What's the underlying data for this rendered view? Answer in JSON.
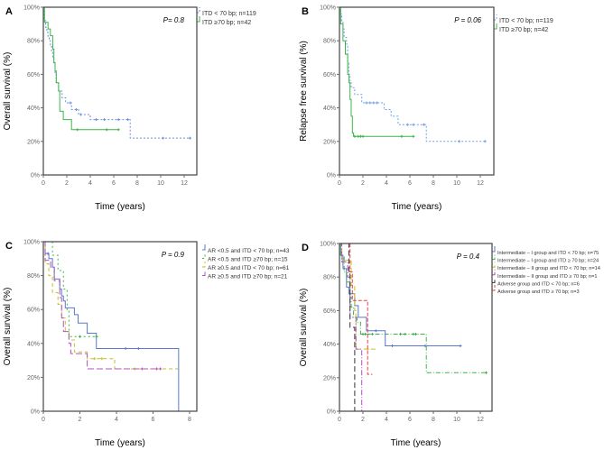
{
  "chart_data": [
    {
      "panel": "A",
      "type": "line",
      "ylabel": "Overall survival (%)",
      "xlabel": "Time (years)",
      "p_value": "P= 0.8",
      "xlim": [
        0,
        12
      ],
      "xticks": [
        0,
        2,
        4,
        6,
        8,
        10,
        12
      ],
      "ylim": [
        0,
        1
      ],
      "yticks": [
        "0%",
        "20%",
        "40%",
        "60%",
        "80%",
        "100%"
      ],
      "series": [
        {
          "name": "ITD < 70 bp; n=119",
          "color": "#6f8fd8",
          "dash": "2,2",
          "steps": [
            [
              0.05,
              0.92
            ],
            [
              0.2,
              0.88
            ],
            [
              0.3,
              0.85
            ],
            [
              0.4,
              0.82
            ],
            [
              0.5,
              0.8
            ],
            [
              0.6,
              0.77
            ],
            [
              0.7,
              0.73
            ],
            [
              0.8,
              0.7
            ],
            [
              0.9,
              0.66
            ],
            [
              1.0,
              0.6
            ],
            [
              1.1,
              0.55
            ],
            [
              1.3,
              0.5
            ],
            [
              1.6,
              0.46
            ],
            [
              1.9,
              0.43
            ],
            [
              2.4,
              0.39
            ],
            [
              3.0,
              0.36
            ],
            [
              4.0,
              0.33
            ],
            [
              7.4,
              0.22
            ]
          ],
          "end": 12.5,
          "censor": [
            2.3,
            2.8,
            3.2,
            4.5,
            5.2,
            6.4,
            7.2,
            10.2,
            12.5
          ]
        },
        {
          "name": "ITD ≥70 bp; n=42",
          "color": "#3cb44b",
          "dash": "",
          "steps": [
            [
              0.1,
              0.91
            ],
            [
              0.4,
              0.87
            ],
            [
              0.6,
              0.83
            ],
            [
              0.8,
              0.75
            ],
            [
              0.9,
              0.67
            ],
            [
              1.0,
              0.62
            ],
            [
              1.1,
              0.55
            ],
            [
              1.3,
              0.5
            ],
            [
              1.4,
              0.38
            ],
            [
              1.7,
              0.33
            ],
            [
              2.4,
              0.27
            ]
          ],
          "end": 6.4,
          "censor": [
            2.9,
            5.4,
            6.4
          ]
        }
      ]
    },
    {
      "panel": "B",
      "type": "line",
      "ylabel": "Relapse free survival (%)",
      "xlabel": "Time (years)",
      "p_value": "P = 0.06",
      "xlim": [
        0,
        12
      ],
      "xticks": [
        0,
        2,
        4,
        6,
        8,
        10,
        12
      ],
      "ylim": [
        0,
        1
      ],
      "yticks": [
        "0%",
        "20%",
        "40%",
        "60%",
        "80%",
        "100%"
      ],
      "series": [
        {
          "name": "ITD < 70 bp; n=119",
          "color": "#6f9fe0",
          "dash": "2,2",
          "steps": [
            [
              0.1,
              0.96
            ],
            [
              0.2,
              0.92
            ],
            [
              0.3,
              0.87
            ],
            [
              0.4,
              0.82
            ],
            [
              0.6,
              0.78
            ],
            [
              0.7,
              0.67
            ],
            [
              0.8,
              0.6
            ],
            [
              0.9,
              0.55
            ],
            [
              1.0,
              0.52
            ],
            [
              1.3,
              0.48
            ],
            [
              1.9,
              0.43
            ],
            [
              3.8,
              0.39
            ],
            [
              4.4,
              0.35
            ],
            [
              5.0,
              0.3
            ],
            [
              7.4,
              0.2
            ]
          ],
          "end": 12.4,
          "censor": [
            2.3,
            2.6,
            2.9,
            3.2,
            5.8,
            6.3,
            7.2,
            10.2,
            12.4
          ]
        },
        {
          "name": "ITD ≥70 bp; n=42",
          "color": "#3cb44b",
          "dash": "",
          "steps": [
            [
              0.1,
              0.9
            ],
            [
              0.3,
              0.8
            ],
            [
              0.5,
              0.72
            ],
            [
              0.7,
              0.6
            ],
            [
              0.8,
              0.55
            ],
            [
              0.9,
              0.45
            ],
            [
              1.0,
              0.35
            ],
            [
              1.1,
              0.25
            ],
            [
              1.2,
              0.23
            ]
          ],
          "end": 6.3,
          "censor": [
            1.3,
            1.6,
            1.8,
            2.0,
            5.3,
            6.3
          ]
        }
      ]
    },
    {
      "panel": "C",
      "type": "line",
      "ylabel": "Overall survival (%)",
      "xlabel": "Time (years)",
      "p_value": "P = 0.9",
      "xlim": [
        0,
        8
      ],
      "xticks": [
        0,
        2,
        4,
        6,
        8
      ],
      "ylim": [
        0,
        1
      ],
      "yticks": [
        "0%",
        "20%",
        "40%",
        "60%",
        "80%",
        "100%"
      ],
      "series": [
        {
          "name": "AR <0.5 and ITD < 70 bp; n=43",
          "color": "#5a78d0",
          "dash": "",
          "steps": [
            [
              0.1,
              0.93
            ],
            [
              0.3,
              0.9
            ],
            [
              0.5,
              0.85
            ],
            [
              0.6,
              0.78
            ],
            [
              0.9,
              0.72
            ],
            [
              1.0,
              0.68
            ],
            [
              1.1,
              0.65
            ],
            [
              1.2,
              0.61
            ],
            [
              1.7,
              0.57
            ],
            [
              1.9,
              0.52
            ],
            [
              2.4,
              0.46
            ],
            [
              2.9,
              0.37
            ],
            [
              7.4,
              0.0
            ]
          ],
          "end": 7.4,
          "censor": [
            0.25,
            4.5,
            5.2
          ]
        },
        {
          "name": "AR <0.5 and ITD ≥70 bp; n=15",
          "color": "#3cb44b",
          "dash": "2,3",
          "steps": [
            [
              0.5,
              0.92
            ],
            [
              0.8,
              0.83
            ],
            [
              1.1,
              0.72
            ],
            [
              1.3,
              0.6
            ],
            [
              1.4,
              0.44
            ]
          ],
          "end": 3.0,
          "censor": [
            2.0,
            2.9
          ]
        },
        {
          "name": "AR ≥0.5 and ITD < 70 bp; n=61",
          "color": "#c8c020",
          "dash": "4,3",
          "steps": [
            [
              0.1,
              0.87
            ],
            [
              0.3,
              0.8
            ],
            [
              0.5,
              0.7
            ],
            [
              0.8,
              0.63
            ],
            [
              1.0,
              0.55
            ],
            [
              1.2,
              0.47
            ],
            [
              1.4,
              0.42
            ],
            [
              1.7,
              0.35
            ],
            [
              2.4,
              0.31
            ],
            [
              3.9,
              0.25
            ]
          ],
          "end": 7.4,
          "censor": [
            2.8,
            3.2,
            5.0,
            6.2
          ]
        },
        {
          "name": "AR ≥0.5 and ITD ≥70 bp; n=21",
          "color": "#b050c0",
          "dash": "7,3",
          "steps": [
            [
              0.1,
              0.89
            ],
            [
              0.4,
              0.85
            ],
            [
              0.6,
              0.77
            ],
            [
              0.9,
              0.67
            ],
            [
              1.0,
              0.55
            ],
            [
              1.1,
              0.47
            ],
            [
              1.4,
              0.4
            ],
            [
              1.5,
              0.34
            ],
            [
              2.4,
              0.25
            ]
          ],
          "end": 6.4,
          "censor": [
            5.4,
            6.2,
            6.4
          ]
        }
      ]
    },
    {
      "panel": "D",
      "type": "line",
      "ylabel": "Overall survival (%)",
      "xlabel": "Time (years)",
      "p_value": "P = 0.4",
      "xlim": [
        0,
        12
      ],
      "xticks": [
        0,
        2,
        4,
        6,
        8,
        10,
        12
      ],
      "ylim": [
        0,
        1
      ],
      "yticks": [
        "0%",
        "20%",
        "40%",
        "60%",
        "80%",
        "100%"
      ],
      "series": [
        {
          "name": "Intermediate – I group and ITD < 70 bp; n=75",
          "color": "#5a78d0",
          "dash": "",
          "steps": [
            [
              0.1,
              0.93
            ],
            [
              0.3,
              0.85
            ],
            [
              0.6,
              0.74
            ],
            [
              0.8,
              0.7
            ],
            [
              1.3,
              0.63
            ],
            [
              1.6,
              0.56
            ],
            [
              2.3,
              0.48
            ],
            [
              3.9,
              0.39
            ]
          ],
          "end": 10.3,
          "censor": [
            3.1,
            4.5,
            7.3,
            10.3
          ]
        },
        {
          "name": "Intermediate – I group and ITD ≥ 70 bp; n=24",
          "color": "#3cb44b",
          "dash": "5,2,1,2",
          "steps": [
            [
              0.1,
              0.92
            ],
            [
              0.4,
              0.83
            ],
            [
              0.6,
              0.77
            ],
            [
              0.9,
              0.68
            ],
            [
              1.0,
              0.62
            ],
            [
              1.2,
              0.56
            ],
            [
              1.5,
              0.53
            ],
            [
              1.8,
              0.46
            ],
            [
              7.4,
              0.23
            ]
          ],
          "end": 12.5,
          "censor": [
            2.0,
            2.2,
            2.8,
            5.2,
            5.6,
            6.3,
            6.5,
            12.5
          ]
        },
        {
          "name": "Intermediate – II group and ITD < 70 bp; n=14",
          "color": "#c8c020",
          "dash": "5,3",
          "steps": [
            [
              0.2,
              0.9
            ],
            [
              1.0,
              0.75
            ],
            [
              1.3,
              0.6
            ],
            [
              1.4,
              0.37
            ]
          ],
          "end": 3.1,
          "censor": [
            2.4
          ]
        },
        {
          "name": "Intermediate – II group and ITD ≥ 70 bp; n=1",
          "color": "#b050c0",
          "dash": "6,2,1,2",
          "steps": [
            [
              0.2,
              0.89
            ],
            [
              0.7,
              0.8
            ],
            [
              0.9,
              0.56
            ],
            [
              1.4,
              0.37
            ],
            [
              1.9,
              0.0
            ]
          ],
          "end": 1.9,
          "censor": []
        },
        {
          "name": "Adverse group and ITD < 70 bp; n=6",
          "color": "#333333",
          "dash": "6,3",
          "steps": [
            [
              0.8,
              0.83
            ],
            [
              0.9,
              0.5
            ],
            [
              1.3,
              0.0
            ]
          ],
          "end": 1.3,
          "censor": []
        },
        {
          "name": "Adverse group and ITD ≥ 70 bp; n=3",
          "color": "#e84040",
          "dash": "4,2",
          "steps": [
            [
              0.9,
              0.83
            ],
            [
              1.1,
              0.66
            ],
            [
              2.4,
              0.22
            ]
          ],
          "end": 2.8,
          "censor": []
        }
      ]
    }
  ]
}
